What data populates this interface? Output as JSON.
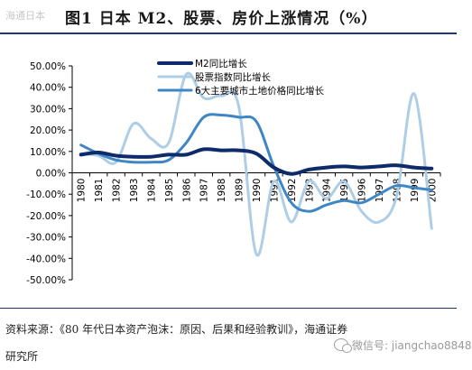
{
  "header": {
    "watermark": "海通日本",
    "title": "图1  日本 M2、股票、房价上涨情况（%）"
  },
  "footer": {
    "source_line1": "资料来源：《80 年代日本资产泡沫：原因、后果和经验教训》，海通证券",
    "source_line2": "研究所",
    "wechat_label": "微信号: jiangchao8848"
  },
  "colors": {
    "m2": "#0d2b6b",
    "stock": "#aecde6",
    "land": "#3f86c4",
    "axis": "#000000",
    "rule": "#1f3864"
  },
  "chart_data": {
    "type": "line",
    "title": "",
    "xlabel": "",
    "ylabel": "",
    "ylim": [
      -50,
      50
    ],
    "yticks": [
      "50.00%",
      "40.00%",
      "30.00%",
      "20.00%",
      "10.00%",
      "0.00%",
      "-10.00%",
      "-20.00%",
      "-30.00%",
      "-40.00%",
      "-50.00%"
    ],
    "categories": [
      "1980",
      "1981",
      "1982",
      "1983",
      "1984",
      "1985",
      "1986",
      "1987",
      "1988",
      "1989",
      "1990",
      "1991",
      "1992",
      "1993",
      "1994",
      "1995",
      "1996",
      "1997",
      "1998",
      "1999",
      "2000"
    ],
    "legend_position": "top",
    "smooth": true,
    "series": [
      {
        "name": "M2同比增长",
        "color_key": "m2",
        "width": 4,
        "values": [
          8.5,
          9.5,
          8,
          7.5,
          7.5,
          8.5,
          8.5,
          11,
          10.5,
          10.5,
          9,
          2.5,
          -0.5,
          1.5,
          2.5,
          3,
          2.5,
          3,
          3.5,
          2.5,
          2
        ]
      },
      {
        "name": "股票指数同比增长",
        "color_key": "stock",
        "width": 3,
        "values": [
          9,
          8,
          5,
          23,
          16,
          14,
          46,
          35,
          36,
          31,
          -38,
          -4,
          -23,
          -4,
          -12,
          -4,
          -18,
          -23,
          -11,
          37,
          -26
        ]
      },
      {
        "name": "6大主要城市土地价格同比增长",
        "color_key": "land",
        "width": 3,
        "values": [
          13,
          9,
          6,
          5,
          5,
          6,
          14,
          26,
          27,
          26,
          24,
          3,
          -14,
          -18,
          -15,
          -13,
          -14,
          -10,
          -6,
          -7,
          -8
        ]
      }
    ]
  }
}
